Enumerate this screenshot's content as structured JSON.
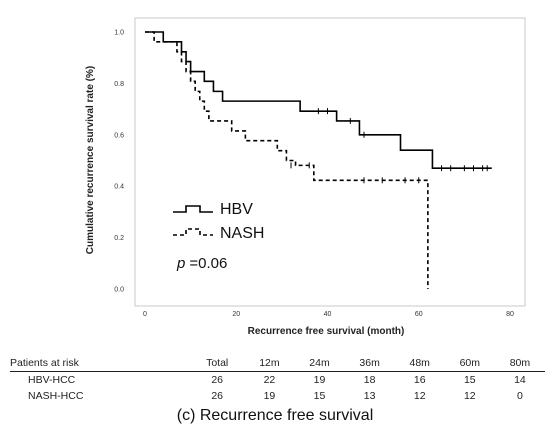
{
  "chart_data": {
    "type": "line",
    "subtype": "kaplan-meier",
    "ylabel": "Cumulative recurrence survival rate (%)",
    "xlabel": "Recurrence free survival (month)",
    "xlim": [
      0,
      80
    ],
    "ylim": [
      0.0,
      1.0
    ],
    "x_ticks": [
      "0",
      "20",
      "40",
      "60",
      "80"
    ],
    "y_ticks": [
      "0.0",
      "0.2",
      "0.4",
      "0.6",
      "0.8",
      "1.0"
    ],
    "grid": false,
    "legend_position": "lower-left",
    "p_value_prefix": "p",
    "p_value": "=0.06",
    "series": [
      {
        "name": "HBV",
        "style": "solid",
        "color": "#000000",
        "steps": [
          [
            0,
            1.0
          ],
          [
            4,
            0.962
          ],
          [
            8,
            0.923
          ],
          [
            9,
            0.885
          ],
          [
            10,
            0.846
          ],
          [
            13,
            0.808
          ],
          [
            15,
            0.769
          ],
          [
            17,
            0.731
          ],
          [
            34,
            0.692
          ],
          [
            42,
            0.654
          ],
          [
            47,
            0.6
          ],
          [
            56,
            0.54
          ],
          [
            63,
            0.47
          ],
          [
            76,
            0.47
          ]
        ],
        "censored": [
          [
            38,
            0.692
          ],
          [
            40,
            0.692
          ],
          [
            45,
            0.654
          ],
          [
            48,
            0.6
          ],
          [
            65,
            0.47
          ],
          [
            67,
            0.47
          ],
          [
            70,
            0.47
          ],
          [
            72,
            0.47
          ],
          [
            74,
            0.47
          ],
          [
            75,
            0.47
          ]
        ]
      },
      {
        "name": "NASH",
        "style": "dashed",
        "color": "#000000",
        "steps": [
          [
            0,
            1.0
          ],
          [
            2,
            0.962
          ],
          [
            7,
            0.923
          ],
          [
            8,
            0.885
          ],
          [
            9,
            0.846
          ],
          [
            10,
            0.808
          ],
          [
            11,
            0.769
          ],
          [
            12,
            0.731
          ],
          [
            13,
            0.692
          ],
          [
            14,
            0.654
          ],
          [
            19,
            0.615
          ],
          [
            22,
            0.577
          ],
          [
            29,
            0.538
          ],
          [
            31,
            0.5
          ],
          [
            33,
            0.481
          ],
          [
            37,
            0.423
          ],
          [
            62,
            0.423
          ],
          [
            62,
            0.0
          ]
        ],
        "censored": [
          [
            32,
            0.481
          ],
          [
            36,
            0.481
          ],
          [
            48,
            0.423
          ],
          [
            52,
            0.423
          ],
          [
            57,
            0.423
          ],
          [
            60,
            0.423
          ]
        ]
      }
    ]
  },
  "risk_table": {
    "header": [
      "Patients at risk",
      "Total",
      "12m",
      "24m",
      "36m",
      "48m",
      "60m",
      "80m"
    ],
    "rows": [
      {
        "label": "HBV-HCC",
        "values": [
          "26",
          "22",
          "19",
          "18",
          "16",
          "15",
          "14"
        ]
      },
      {
        "label": "NASH-HCC",
        "values": [
          "26",
          "19",
          "15",
          "13",
          "12",
          "12",
          "0"
        ]
      }
    ]
  },
  "caption": "(c) Recurrence free survival"
}
